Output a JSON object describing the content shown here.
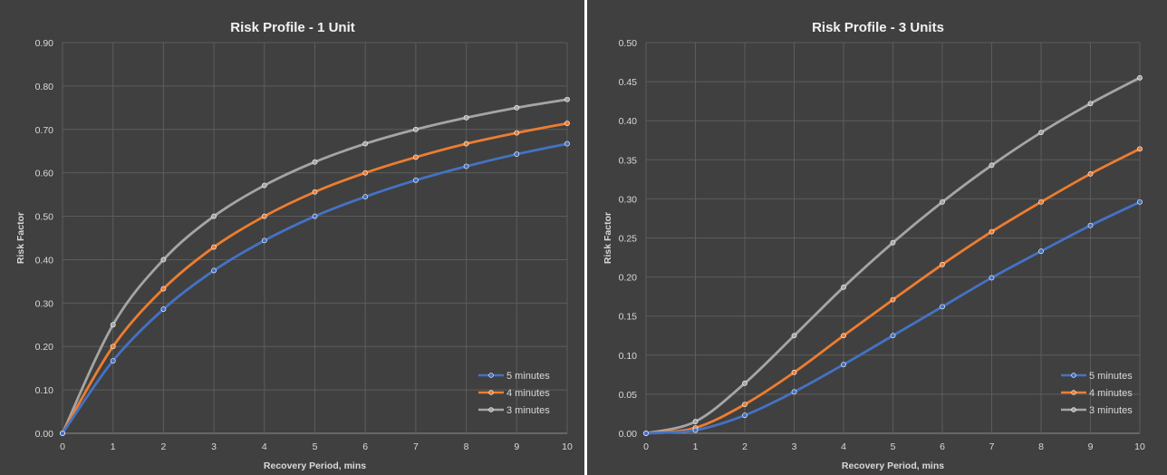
{
  "chart_data": [
    {
      "type": "line",
      "title": "Risk Profile - 1 Unit",
      "xlabel": "Recovery Period, mins",
      "ylabel": "Risk Factor",
      "xlim": [
        0,
        10
      ],
      "ylim": [
        0,
        0.9
      ],
      "x_ticks": [
        "0",
        "1",
        "2",
        "3",
        "4",
        "5",
        "6",
        "7",
        "8",
        "9",
        "10"
      ],
      "y_ticks": [
        "0.00",
        "0.10",
        "0.20",
        "0.30",
        "0.40",
        "0.50",
        "0.60",
        "0.70",
        "0.80",
        "0.90"
      ],
      "grid": true,
      "legend_position": "bottom-right",
      "x": [
        0,
        1,
        2,
        3,
        4,
        5,
        6,
        7,
        8,
        9,
        10
      ],
      "series": [
        {
          "name": "5 minutes",
          "color": "#4472c4",
          "values": [
            0,
            0.167,
            0.286,
            0.375,
            0.444,
            0.5,
            0.545,
            0.583,
            0.615,
            0.643,
            0.667
          ]
        },
        {
          "name": "4 minutes",
          "color": "#ed7d31",
          "values": [
            0,
            0.2,
            0.333,
            0.429,
            0.5,
            0.556,
            0.6,
            0.636,
            0.667,
            0.692,
            0.714
          ]
        },
        {
          "name": "3 minutes",
          "color": "#a5a5a5",
          "values": [
            0,
            0.25,
            0.4,
            0.5,
            0.571,
            0.625,
            0.667,
            0.7,
            0.727,
            0.75,
            0.769
          ]
        }
      ]
    },
    {
      "type": "line",
      "title": "Risk Profile - 3 Units",
      "xlabel": "Recovery Period, mins",
      "ylabel": "Risk Factor",
      "xlim": [
        0,
        10
      ],
      "ylim": [
        0,
        0.5
      ],
      "x_ticks": [
        "0",
        "1",
        "2",
        "3",
        "4",
        "5",
        "6",
        "7",
        "8",
        "9",
        "10"
      ],
      "y_ticks": [
        "0.00",
        "0.05",
        "0.10",
        "0.15",
        "0.20",
        "0.25",
        "0.30",
        "0.35",
        "0.40",
        "0.45",
        "0.50"
      ],
      "grid": true,
      "legend_position": "bottom-right",
      "x": [
        0,
        1,
        2,
        3,
        4,
        5,
        6,
        7,
        8,
        9,
        10
      ],
      "series": [
        {
          "name": "5 minutes",
          "color": "#4472c4",
          "values": [
            0,
            0.004,
            0.023,
            0.053,
            0.088,
            0.125,
            0.162,
            0.199,
            0.233,
            0.266,
            0.296
          ]
        },
        {
          "name": "4 minutes",
          "color": "#ed7d31",
          "values": [
            0,
            0.007,
            0.037,
            0.078,
            0.125,
            0.171,
            0.216,
            0.258,
            0.296,
            0.332,
            0.364
          ]
        },
        {
          "name": "3 minutes",
          "color": "#a5a5a5",
          "values": [
            0,
            0.015,
            0.064,
            0.125,
            0.187,
            0.244,
            0.296,
            0.343,
            0.385,
            0.422,
            0.455
          ]
        }
      ]
    }
  ]
}
